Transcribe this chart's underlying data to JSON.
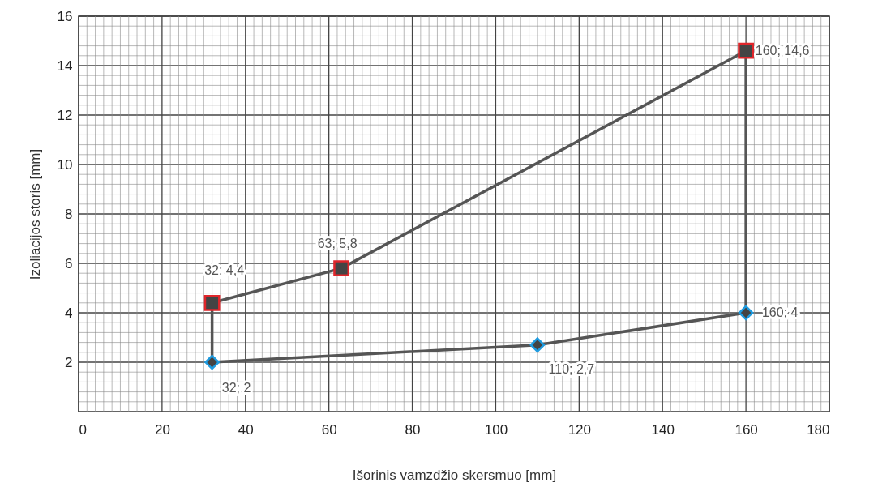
{
  "chart_data": {
    "type": "line",
    "xlabel": "Išorinis vamzdžio skersmuo [mm]",
    "ylabel": "Izoliacijos storis [mm]",
    "xlim": [
      0,
      180
    ],
    "ylim": [
      0,
      16
    ],
    "xticks": [
      0,
      {
        "value": 2,
        "label": null
      },
      {
        "value": 4,
        "label": null
      },
      {
        "value": 6,
        "label": null
      },
      {
        "value": 8,
        "label": null
      },
      {
        "value": 10,
        "label": null
      },
      {
        "value": 12,
        "label": null
      },
      {
        "value": 14,
        "label": null
      },
      {
        "value": 16,
        "label": null
      },
      {
        "value": 18,
        "label": null
      },
      20,
      {
        "value": 22,
        "label": null
      },
      {
        "value": 24,
        "label": null
      },
      {
        "value": 26,
        "label": null
      },
      {
        "value": 28,
        "label": null
      },
      {
        "value": 30,
        "label": null
      },
      {
        "value": 32,
        "label": null
      },
      {
        "value": 34,
        "label": null
      },
      {
        "value": 36,
        "label": null
      },
      {
        "value": 38,
        "label": null
      },
      40,
      {
        "value": 42,
        "label": null
      },
      {
        "value": 44,
        "label": null
      },
      {
        "value": 46,
        "label": null
      },
      {
        "value": 48,
        "label": null
      },
      {
        "value": 50,
        "label": null
      },
      {
        "value": 52,
        "label": null
      },
      {
        "value": 54,
        "label": null
      },
      {
        "value": 56,
        "label": null
      },
      {
        "value": 58,
        "label": null
      },
      60,
      {
        "value": 62,
        "label": null
      },
      {
        "value": 64,
        "label": null
      },
      {
        "value": 66,
        "label": null
      },
      {
        "value": 68,
        "label": null
      },
      {
        "value": 70,
        "label": null
      },
      {
        "value": 72,
        "label": null
      },
      {
        "value": 74,
        "label": null
      },
      {
        "value": 76,
        "label": null
      },
      {
        "value": 78,
        "label": null
      },
      80,
      {
        "value": 82,
        "label": null
      },
      {
        "value": 84,
        "label": null
      },
      {
        "value": 86,
        "label": null
      },
      {
        "value": 88,
        "label": null
      },
      {
        "value": 90,
        "label": null
      },
      {
        "value": 92,
        "label": null
      },
      {
        "value": 94,
        "label": null
      },
      {
        "value": 96,
        "label": null
      },
      {
        "value": 98,
        "label": null
      },
      100,
      {
        "value": 102,
        "label": null
      },
      {
        "value": 104,
        "label": null
      },
      {
        "value": 106,
        "label": null
      },
      {
        "value": 108,
        "label": null
      },
      {
        "value": 110,
        "label": null
      },
      {
        "value": 112,
        "label": null
      },
      {
        "value": 114,
        "label": null
      },
      {
        "value": 116,
        "label": null
      },
      {
        "value": 118,
        "label": null
      },
      120,
      {
        "value": 122,
        "label": null
      },
      {
        "value": 124,
        "label": null
      },
      {
        "value": 126,
        "label": null
      },
      {
        "value": 128,
        "label": null
      },
      {
        "value": 130,
        "label": null
      },
      {
        "value": 132,
        "label": null
      },
      {
        "value": 134,
        "label": null
      },
      {
        "value": 136,
        "label": null
      },
      {
        "value": 138,
        "label": null
      },
      140,
      {
        "value": 142,
        "label": null
      },
      {
        "value": 144,
        "label": null
      },
      {
        "value": 146,
        "label": null
      },
      {
        "value": 148,
        "label": null
      },
      {
        "value": 150,
        "label": null
      },
      {
        "value": 152,
        "label": null
      },
      {
        "value": 154,
        "label": null
      },
      {
        "value": 156,
        "label": null
      },
      {
        "value": 158,
        "label": null
      },
      160,
      {
        "value": 162,
        "label": null
      },
      {
        "value": 164,
        "label": null
      },
      {
        "value": 166,
        "label": null
      },
      {
        "value": 168,
        "label": null
      },
      {
        "value": 170,
        "label": null
      },
      {
        "value": 172,
        "label": null
      },
      {
        "value": 174,
        "label": null
      },
      {
        "value": 176,
        "label": null
      },
      {
        "value": 178,
        "label": null
      },
      180
    ],
    "yticks": [
      {
        "value": 0.4,
        "label": null
      },
      {
        "value": 0.8,
        "label": null
      },
      {
        "value": 1.2,
        "label": null
      },
      {
        "value": 1.6,
        "label": null
      },
      2,
      {
        "value": 2.4,
        "label": null
      },
      {
        "value": 2.8,
        "label": null
      },
      {
        "value": 3.2,
        "label": null
      },
      {
        "value": 3.6,
        "label": null
      },
      4,
      {
        "value": 4.4,
        "label": null
      },
      {
        "value": 4.8,
        "label": null
      },
      {
        "value": 5.2,
        "label": null
      },
      {
        "value": 5.6,
        "label": null
      },
      6,
      {
        "value": 6.4,
        "label": null
      },
      {
        "value": 6.8,
        "label": null
      },
      {
        "value": 7.2,
        "label": null
      },
      {
        "value": 7.6,
        "label": null
      },
      8,
      {
        "value": 8.4,
        "label": null
      },
      {
        "value": 8.8,
        "label": null
      },
      {
        "value": 9.2,
        "label": null
      },
      {
        "value": 9.6,
        "label": null
      },
      10,
      {
        "value": 10.4,
        "label": null
      },
      {
        "value": 10.8,
        "label": null
      },
      {
        "value": 11.2,
        "label": null
      },
      {
        "value": 11.6,
        "label": null
      },
      12,
      {
        "value": 12.4,
        "label": null
      },
      {
        "value": 12.8,
        "label": null
      },
      {
        "value": 13.2,
        "label": null
      },
      {
        "value": 13.6,
        "label": null
      },
      14,
      {
        "value": 14.4,
        "label": null
      },
      {
        "value": 14.8,
        "label": null
      },
      {
        "value": 15.2,
        "label": null
      },
      {
        "value": 15.6,
        "label": null
      },
      16
    ],
    "grid": true,
    "series": [
      {
        "color": "#555555",
        "marker": "none",
        "x": [
          32,
          32,
          63,
          160,
          160
        ],
        "values": [
          2,
          4.4,
          5.8,
          14.6,
          4
        ]
      },
      {
        "color": "#555555",
        "marker": "none",
        "x": [
          32,
          110,
          160
        ],
        "values": [
          2,
          2.7,
          4
        ]
      },
      {
        "type": "scatter",
        "color": "#e0262b",
        "marker": "square",
        "x": [
          32,
          63,
          160
        ],
        "values": [
          4.4,
          5.8,
          14.6
        ],
        "value_labels": [
          "32; 4,4",
          "63; 5,8",
          "160; 14,6"
        ]
      },
      {
        "type": "scatter",
        "color": "#1e9be0",
        "marker": "diamond",
        "x": [
          160,
          110,
          32
        ],
        "values": [
          4,
          2.7,
          2
        ],
        "value_labels": [
          "160; 4",
          "110; 2,7",
          "32; 2"
        ]
      }
    ]
  }
}
